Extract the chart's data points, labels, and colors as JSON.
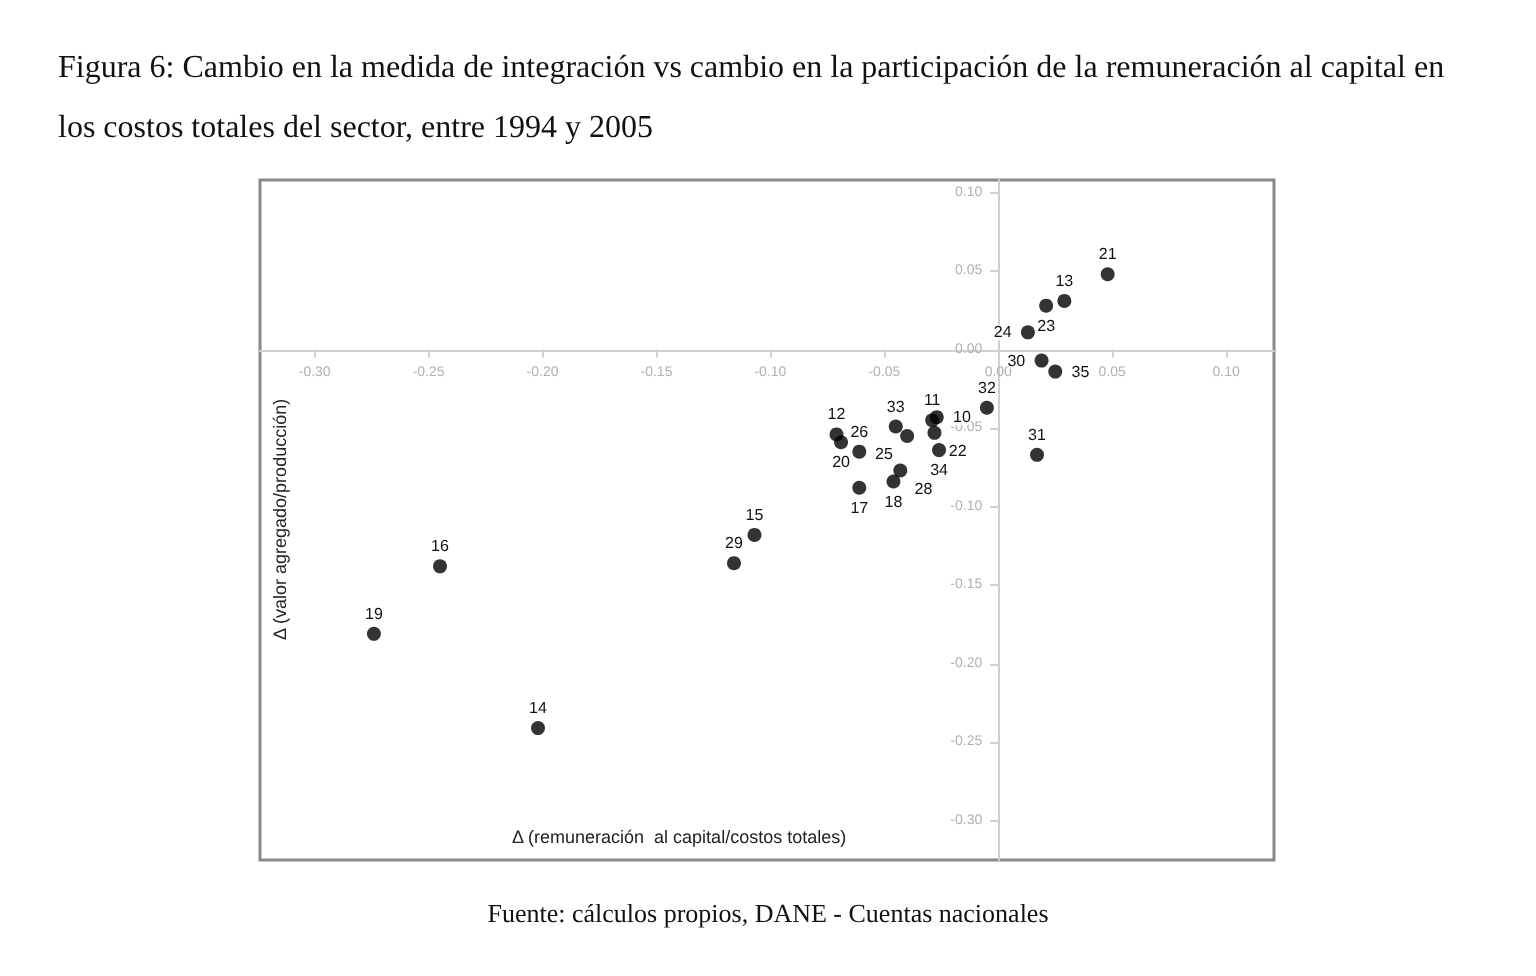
{
  "chart_data": {
    "type": "scatter",
    "title": "Figura 6: Cambio en la medida de integración vs cambio en la participación de la remuneración al capital en los costos totales del sector, entre 1994 y 2005",
    "xlabel": "Δ (remuneración  al capital/costos totales)",
    "ylabel": "Δ (valor agregado/producción)",
    "x": [
      0.048,
      0.029,
      0.021,
      0.013,
      0.019,
      0.025,
      -0.005,
      0.017,
      -0.029,
      -0.027,
      -0.045,
      -0.04,
      -0.028,
      -0.026,
      -0.071,
      -0.069,
      -0.061,
      -0.061,
      -0.043,
      -0.046,
      -0.107,
      -0.116,
      -0.245,
      -0.274,
      -0.202
    ],
    "series": [
      {
        "color": "#000000",
        "values": [
          0.048,
          0.031,
          0.028,
          0.011,
          -0.007,
          -0.014,
          -0.037,
          -0.067,
          -0.045,
          -0.043,
          -0.049,
          -0.055,
          -0.053,
          -0.064,
          -0.054,
          -0.059,
          -0.065,
          -0.088,
          -0.077,
          -0.084,
          -0.118,
          -0.136,
          -0.138,
          -0.181,
          -0.241
        ]
      }
    ],
    "marker": "circle",
    "grid": false,
    "xlim": [
      -0.324,
      0.121
    ],
    "xticks": [
      {
        "value": -0.3,
        "label": "-0.30"
      },
      {
        "value": -0.25,
        "label": "-0.25"
      },
      {
        "value": -0.2,
        "label": "-0.20"
      },
      {
        "value": -0.15,
        "label": "-0.15"
      },
      {
        "value": -0.1,
        "label": "-0.10"
      },
      {
        "value": -0.05,
        "label": "-0.05"
      },
      {
        "value": 0,
        "label": "0.00"
      },
      {
        "value": 0.05,
        "label": "0.05"
      },
      {
        "value": 0.1,
        "label": "0.10"
      }
    ],
    "ylim": [
      -0.325,
      0.108
    ],
    "yticks": [
      {
        "value": -0.3,
        "label": "-0.30"
      },
      {
        "value": -0.25,
        "label": "-0.25"
      },
      {
        "value": -0.2,
        "label": "-0.20"
      },
      {
        "value": -0.15,
        "label": "-0.15"
      },
      {
        "value": -0.1,
        "label": "-0.10"
      },
      {
        "value": -0.05,
        "label": "-0.05"
      },
      {
        "value": 0,
        "label": "0.00"
      },
      {
        "value": 0.05,
        "label": "0.05"
      },
      {
        "value": 0.1,
        "label": "0.10"
      }
    ],
    "annotations": [
      "Fuente: cálculos propios, DANE - Cuentas nacionales",
      {
        "text": "21",
        "x": 0.048,
        "y": 0.048
      },
      {
        "text": "13",
        "x": 0.029,
        "y": 0.031
      },
      {
        "text": "23",
        "x": 0.021,
        "y": 0.028
      },
      {
        "text": "24",
        "x": 0.013,
        "y": 0.011
      },
      {
        "text": "30",
        "x": 0.019,
        "y": -0.007
      },
      {
        "text": "35",
        "x": 0.025,
        "y": -0.014
      },
      {
        "text": "32",
        "x": -0.005,
        "y": -0.037
      },
      {
        "text": "31",
        "x": 0.017,
        "y": -0.067
      },
      {
        "text": "11",
        "x": -0.029,
        "y": -0.045
      },
      {
        "text": "10",
        "x": -0.027,
        "y": -0.043
      },
      {
        "text": "33",
        "x": -0.045,
        "y": -0.049
      },
      {
        "text": "25",
        "x": -0.04,
        "y": -0.055
      },
      {
        "text": "22",
        "x": -0.028,
        "y": -0.053
      },
      {
        "text": "34",
        "x": -0.026,
        "y": -0.064
      },
      {
        "text": "12",
        "x": -0.071,
        "y": -0.054
      },
      {
        "text": "20",
        "x": -0.069,
        "y": -0.059
      },
      {
        "text": "26",
        "x": -0.061,
        "y": -0.065
      },
      {
        "text": "17",
        "x": -0.061,
        "y": -0.088
      },
      {
        "text": "28",
        "x": -0.043,
        "y": -0.077
      },
      {
        "text": "18",
        "x": -0.046,
        "y": -0.084
      },
      {
        "text": "15",
        "x": -0.107,
        "y": -0.118
      },
      {
        "text": "29",
        "x": -0.116,
        "y": -0.136
      },
      {
        "text": "16",
        "x": -0.245,
        "y": -0.138
      },
      {
        "text": "19",
        "x": -0.274,
        "y": -0.181
      },
      {
        "text": "14",
        "x": -0.202,
        "y": -0.241
      }
    ]
  }
}
